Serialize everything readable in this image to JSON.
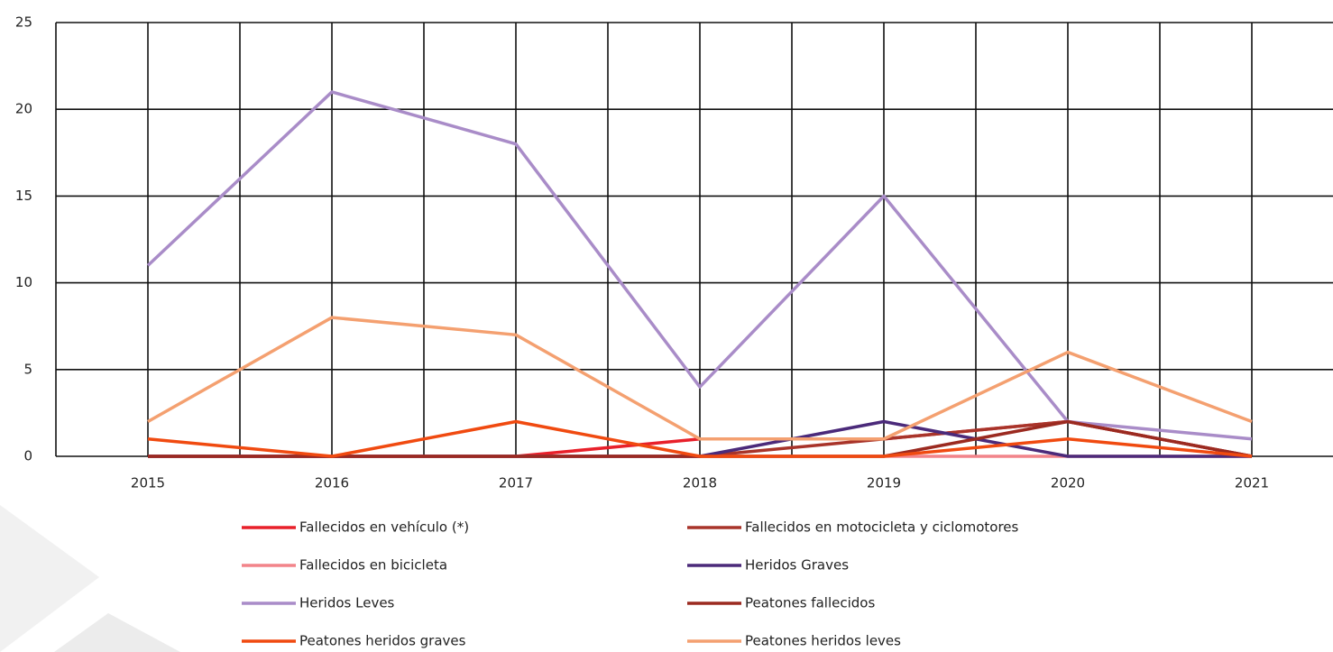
{
  "chart_data": {
    "type": "line",
    "categories": [
      "2015",
      "2016",
      "2017",
      "2018",
      "2019",
      "2020",
      "2021"
    ],
    "series": [
      {
        "name": "Fallecidos en vehículo (*)",
        "color": "#e8202a",
        "values": [
          0,
          0,
          0,
          1,
          1,
          2,
          0
        ]
      },
      {
        "name": "Fallecidos en motocicleta y ciclomotores",
        "color": "#a8342a",
        "values": [
          0,
          0,
          0,
          0,
          1,
          2,
          0
        ]
      },
      {
        "name": "Fallecidos en bicicleta",
        "color": "#f2848a",
        "values": [
          0,
          0,
          0,
          0,
          0,
          0,
          0
        ]
      },
      {
        "name": "Heridos Graves",
        "color": "#4b2a7a",
        "values": [
          0,
          0,
          0,
          0,
          2,
          0,
          0
        ]
      },
      {
        "name": "Heridos Leves",
        "color": "#a98cc8",
        "values": [
          11,
          21,
          18,
          4,
          15,
          2,
          1
        ]
      },
      {
        "name": "Peatones fallecidos",
        "color": "#9b2a20",
        "values": [
          0,
          0,
          0,
          0,
          0,
          2,
          0
        ]
      },
      {
        "name": "Peatones heridos graves",
        "color": "#f04a10",
        "values": [
          1,
          0,
          2,
          0,
          0,
          1,
          0
        ]
      },
      {
        "name": "Peatones heridos leves",
        "color": "#f4a070",
        "values": [
          2,
          8,
          7,
          1,
          1,
          6,
          2
        ]
      }
    ],
    "ylim": [
      0,
      25
    ],
    "yticks": [
      0,
      5,
      10,
      15,
      20,
      25
    ],
    "grid": true
  }
}
